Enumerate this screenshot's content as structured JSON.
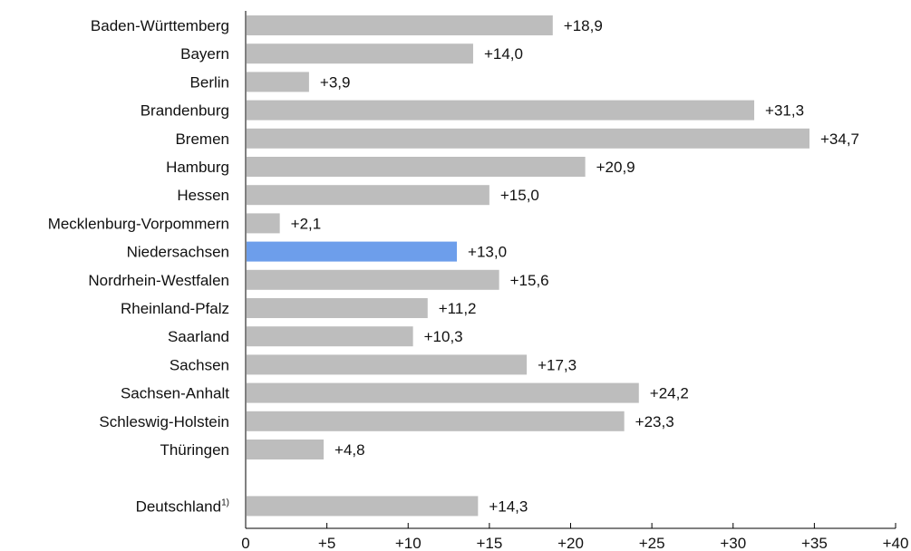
{
  "chart_data": {
    "type": "bar",
    "orientation": "horizontal",
    "categories": [
      "Baden-Württemberg",
      "Bayern",
      "Berlin",
      "Brandenburg",
      "Bremen",
      "Hamburg",
      "Hessen",
      "Mecklenburg-Vorpommern",
      "Niedersachsen",
      "Nordrhein-Westfalen",
      "Rheinland-Pfalz",
      "Saarland",
      "Sachsen",
      "Sachsen-Anhalt",
      "Schleswig-Holstein",
      "Thüringen",
      "Deutschland"
    ],
    "category_footnotes": {
      "16": "1)"
    },
    "values": [
      18.9,
      14.0,
      3.9,
      31.3,
      34.7,
      20.9,
      15.0,
      2.1,
      13.0,
      15.6,
      11.2,
      10.3,
      17.3,
      24.2,
      23.3,
      4.8,
      14.3
    ],
    "value_labels": [
      "+18,9",
      "+14,0",
      "+3,9",
      "+31,3",
      "+34,7",
      "+20,9",
      "+15,0",
      "+2,1",
      "+13,0",
      "+15,6",
      "+11,2",
      "+10,3",
      "+17,3",
      "+24,2",
      "+23,3",
      "+4,8",
      "+14,3"
    ],
    "highlight_index": 8,
    "gap_before_index": 16,
    "xlim": [
      0,
      40
    ],
    "x_ticks": [
      0,
      5,
      10,
      15,
      20,
      25,
      30,
      35,
      40
    ],
    "x_tick_labels": [
      "0",
      "+5",
      "+10",
      "+15",
      "+20",
      "+25",
      "+30",
      "+35",
      "+40"
    ],
    "grid": false,
    "title": "",
    "xlabel": "",
    "ylabel": "",
    "colors": {
      "bar": "#bdbdbd",
      "highlight": "#6d9eeb",
      "axis": "#000000"
    }
  }
}
